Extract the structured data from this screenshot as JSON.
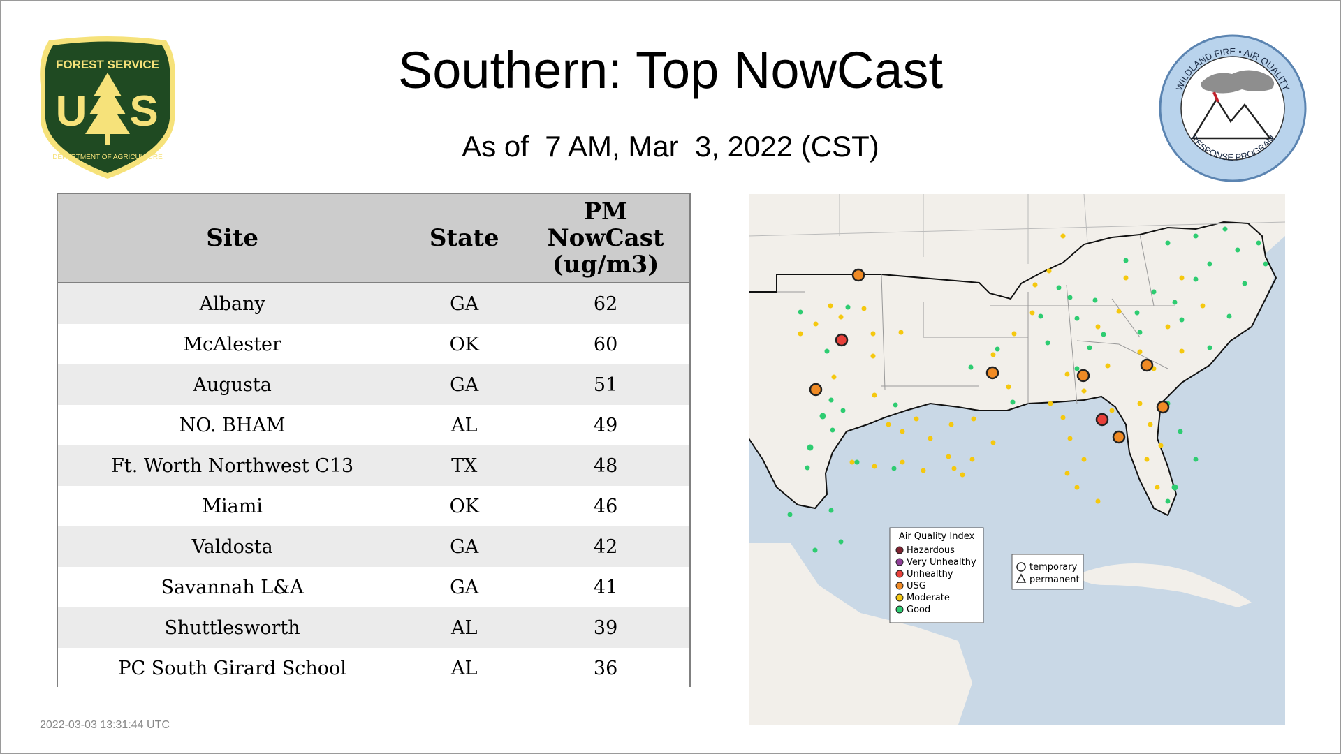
{
  "header": {
    "title": "Southern: Top NowCast",
    "subtitle": "As of  7 AM, Mar  3, 2022 (CST)"
  },
  "logos": {
    "forest_service": {
      "top_text": "FOREST SERVICE",
      "letters": "U S",
      "bottom_text": "DEPARTMENT OF AGRICULTURE"
    },
    "wildland_fire": {
      "top_text": "WILDLAND FIRE • AIR QUALITY",
      "bottom_text": "RESPONSE PROGRAM"
    }
  },
  "table": {
    "columns": {
      "site": "Site",
      "state": "State",
      "pm_line1": "PM",
      "pm_line2": "NowCast",
      "pm_line3": "(ug/m3)"
    },
    "rows": [
      {
        "site": "Albany",
        "state": "GA",
        "value": "62"
      },
      {
        "site": "McAlester",
        "state": "OK",
        "value": "60"
      },
      {
        "site": "Augusta",
        "state": "GA",
        "value": "51"
      },
      {
        "site": "NO. BHAM",
        "state": "AL",
        "value": "49"
      },
      {
        "site": "Ft. Worth Northwest C13",
        "state": "TX",
        "value": "48"
      },
      {
        "site": "Miami",
        "state": "OK",
        "value": "46"
      },
      {
        "site": "Valdosta",
        "state": "GA",
        "value": "42"
      },
      {
        "site": "Savannah L&A",
        "state": "GA",
        "value": "41"
      },
      {
        "site": "Shuttlesworth",
        "state": "AL",
        "value": "39"
      },
      {
        "site": "PC South Girard School",
        "state": "AL",
        "value": "36"
      }
    ]
  },
  "map": {
    "legend": {
      "title": "Air Quality Index",
      "items": [
        {
          "label": "Hazardous",
          "color": "#7e2330"
        },
        {
          "label": "Very Unhealthy",
          "color": "#8f3f97"
        },
        {
          "label": "Unhealthy",
          "color": "#e8403a"
        },
        {
          "label": "USG",
          "color": "#f08a24"
        },
        {
          "label": "Moderate",
          "color": "#f5c80f"
        },
        {
          "label": "Good",
          "color": "#2ecc71"
        }
      ]
    },
    "marker_key": {
      "temporary": "temporary",
      "permanent": "permanent"
    },
    "colors": {
      "water": "#c9d8e6",
      "land": "#f2efea",
      "usg": "#f08a24",
      "unhealthy": "#e8403a",
      "moderate": "#f5c80f",
      "good": "#2ecc71"
    }
  },
  "footer": {
    "timestamp": "2022-03-03 13:31:44 UTC"
  }
}
